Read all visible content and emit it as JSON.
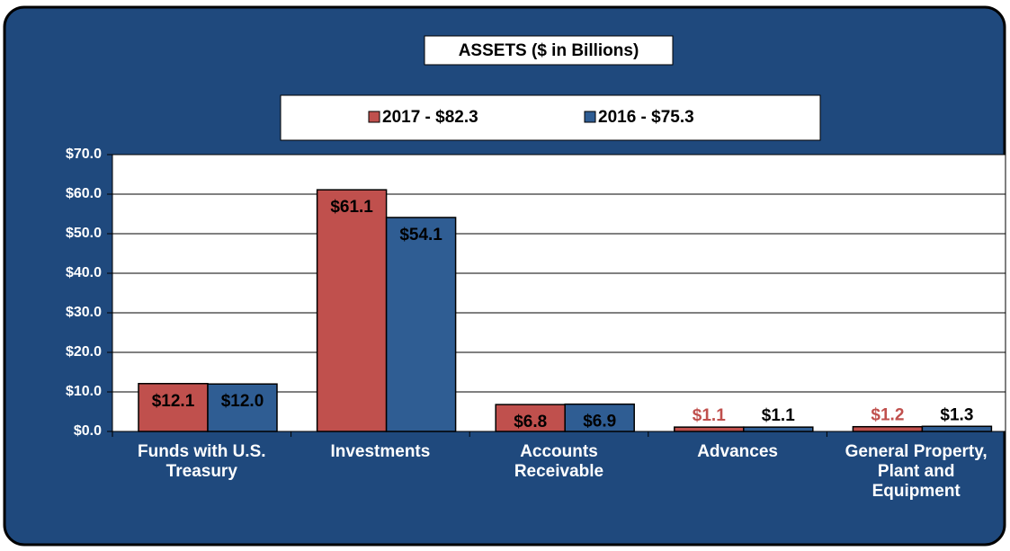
{
  "chart_data": {
    "type": "bar",
    "title": "ASSETS ($ in Billions)",
    "categories": [
      "Funds with U.S. Treasury",
      "Investments",
      "Accounts Receivable",
      "Advances",
      "General Property, Plant and Equipment"
    ],
    "series": [
      {
        "name": "2017 - $82.3",
        "color": "#c0504d",
        "outside_label_color": "#c0504d",
        "values": [
          12.1,
          61.1,
          6.8,
          1.1,
          1.2
        ],
        "value_labels": [
          "$12.1",
          "$61.1",
          "$6.8",
          "$1.1",
          "$1.2"
        ]
      },
      {
        "name": "2016 - $75.3",
        "color": "#2f5d93",
        "outside_label_color": "#000000",
        "values": [
          12.0,
          54.1,
          6.9,
          1.1,
          1.3
        ],
        "value_labels": [
          "$12.0",
          "$54.1",
          "$6.9",
          "$1.1",
          "$1.3"
        ]
      }
    ],
    "ylim": [
      0,
      70
    ],
    "yticks": [
      {
        "value": 0,
        "label": "$0.0"
      },
      {
        "value": 10,
        "label": "$10.0"
      },
      {
        "value": 20,
        "label": "$20.0"
      },
      {
        "value": 30,
        "label": "$30.0"
      },
      {
        "value": 40,
        "label": "$40.0"
      },
      {
        "value": 50,
        "label": "$50.0"
      },
      {
        "value": 60,
        "label": "$60.0"
      },
      {
        "value": 70,
        "label": "$70.0"
      }
    ],
    "grid": true
  }
}
